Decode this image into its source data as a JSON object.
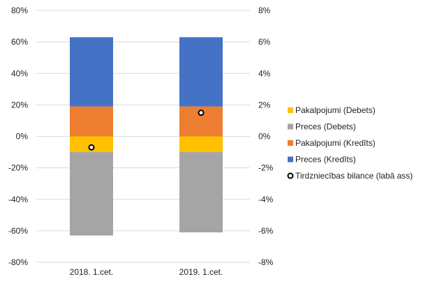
{
  "chart_data": {
    "type": "bar",
    "stacked": true,
    "categories": [
      "2018. 1.cet.",
      "2019. 1.cet."
    ],
    "y_axis_left": {
      "min": -80,
      "max": 80,
      "step": 20,
      "unit": "%",
      "tick_labels": [
        "80%",
        "60%",
        "40%",
        "20%",
        "0%",
        "-20%",
        "-40%",
        "-60%",
        "-80%"
      ]
    },
    "y_axis_right": {
      "min": -8,
      "max": 8,
      "step": 2,
      "unit": "%",
      "tick_labels": [
        "8%",
        "6%",
        "4%",
        "2%",
        "0%",
        "-2%",
        "-4%",
        "-6%",
        "-8%"
      ]
    },
    "grid": true,
    "legend_position": "right",
    "series": [
      {
        "name": "Pakalpojumi (Debets)",
        "color": "#FFC000",
        "axis": "left",
        "kind": "bar",
        "values": [
          -10,
          -10
        ]
      },
      {
        "name": "Preces (Debets)",
        "color": "#A5A5A5",
        "axis": "left",
        "kind": "bar",
        "values": [
          -53,
          -51
        ]
      },
      {
        "name": "Pakalpojumi (Kredīts)",
        "color": "#ED7D31",
        "axis": "left",
        "kind": "bar",
        "values": [
          19,
          19
        ]
      },
      {
        "name": "Preces (Kredīts)",
        "color": "#4472C4",
        "axis": "left",
        "kind": "bar",
        "values": [
          44,
          44
        ]
      },
      {
        "name": "Tirdzniecības bilance (labā ass)",
        "color": "#000000",
        "axis": "right",
        "kind": "point",
        "values": [
          -0.7,
          1.5
        ]
      }
    ]
  }
}
